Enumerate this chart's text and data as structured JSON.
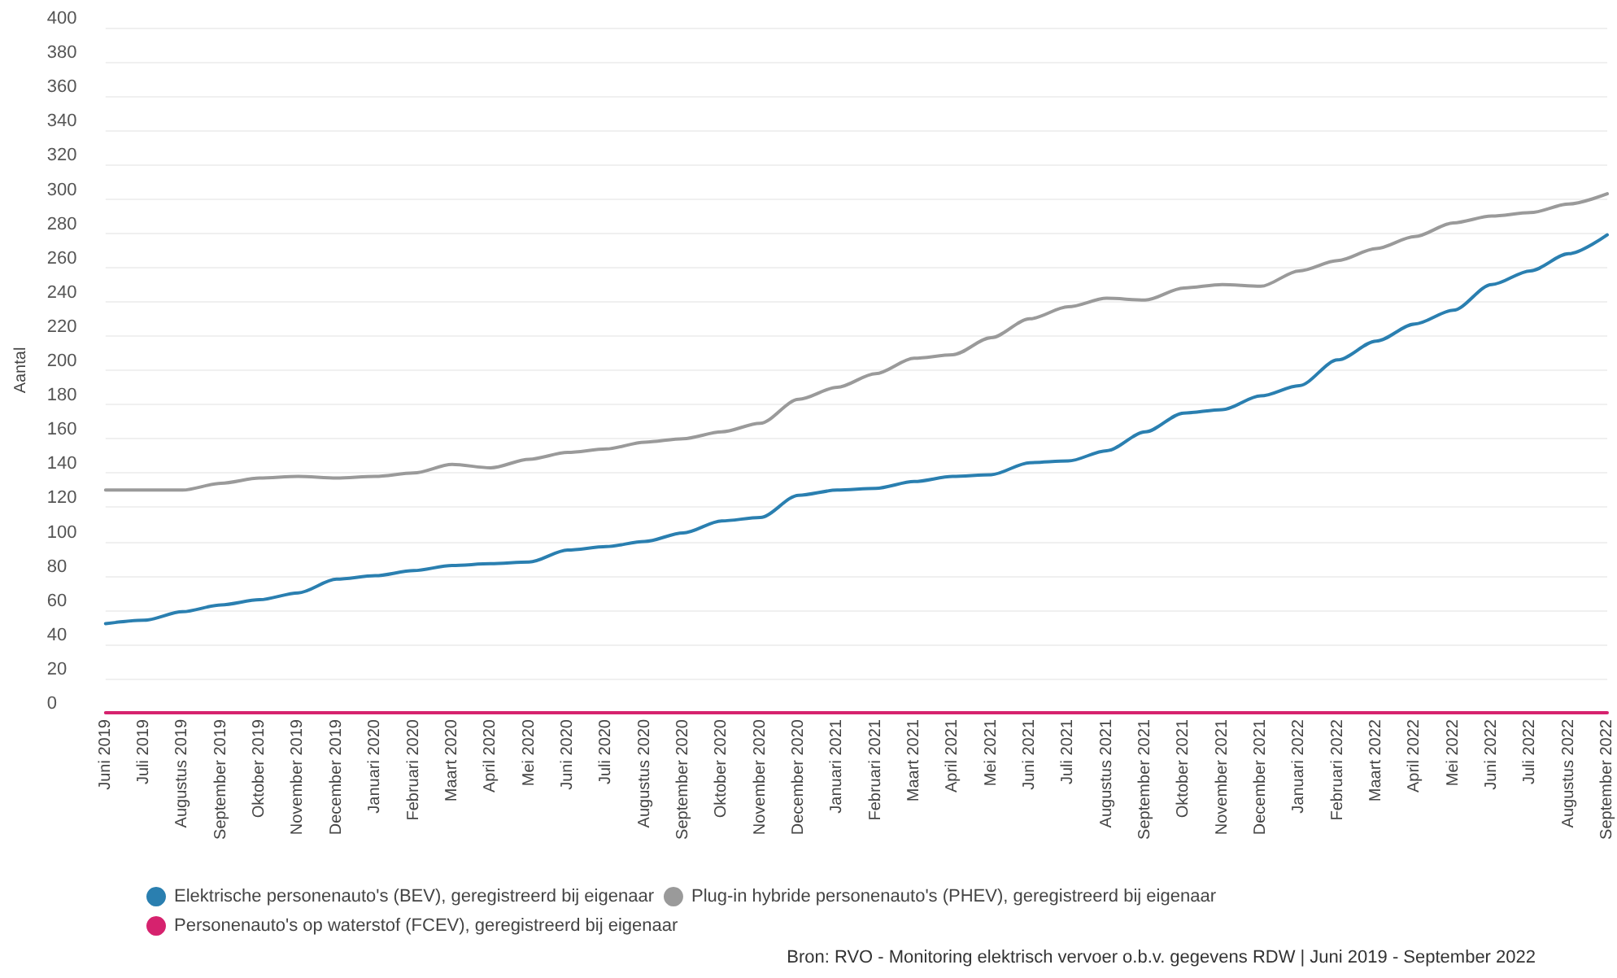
{
  "chart_data": {
    "type": "line",
    "categories": [
      "Juni 2019",
      "Juli 2019",
      "Augustus 2019",
      "September 2019",
      "Oktober 2019",
      "November 2019",
      "December 2019",
      "Januari 2020",
      "Februari 2020",
      "Maart 2020",
      "April 2020",
      "Mei 2020",
      "Juni 2020",
      "Juli 2020",
      "Augustus 2020",
      "September 2020",
      "Oktober 2020",
      "November 2020",
      "December 2020",
      "Januari 2021",
      "Februari 2021",
      "Maart 2021",
      "April 2021",
      "Mei 2021",
      "Juni 2021",
      "Juli 2021",
      "Augustus 2021",
      "September 2021",
      "Oktober 2021",
      "November 2021",
      "December 2021",
      "Januari 2022",
      "Februari 2022",
      "Maart 2022",
      "April 2022",
      "Mei 2022",
      "Juni 2022",
      "Juli 2022",
      "Augustus 2022",
      "September 2022"
    ],
    "series": [
      {
        "name": "Elektrische personenauto's (BEV), geregistreerd bij eigenaar",
        "color": "#2a7fb0",
        "values": [
          52,
          54,
          59,
          63,
          66,
          70,
          78,
          80,
          83,
          86,
          87,
          88,
          95,
          97,
          100,
          105,
          112,
          114,
          127,
          130,
          131,
          135,
          138,
          139,
          146,
          147,
          153,
          164,
          175,
          177,
          185,
          191,
          206,
          217,
          227,
          235,
          250,
          258,
          268,
          279
        ]
      },
      {
        "name": "Plug-in hybride personenauto's (PHEV), geregistreerd bij eigenaar",
        "color": "#9a9a9a",
        "values": [
          130,
          130,
          130,
          134,
          137,
          138,
          137,
          138,
          140,
          145,
          143,
          148,
          152,
          154,
          158,
          160,
          164,
          169,
          183,
          190,
          198,
          207,
          209,
          219,
          230,
          237,
          242,
          241,
          248,
          250,
          249,
          258,
          264,
          271,
          278,
          286,
          290,
          292,
          297,
          303
        ]
      },
      {
        "name": "Personenauto's op waterstof (FCEV), geregistreerd bij eigenaar",
        "color": "#d6226e",
        "values": [
          0,
          0,
          0,
          0,
          0,
          0,
          0,
          0,
          0,
          0,
          0,
          0,
          0,
          0,
          0,
          0,
          0,
          0,
          0,
          0,
          0,
          0,
          0,
          0,
          0,
          0,
          0,
          0,
          0,
          0,
          0,
          0,
          0,
          0,
          0,
          0,
          0,
          0,
          0,
          0
        ]
      }
    ],
    "ylabel": "Aantal",
    "ylim": [
      0,
      400
    ],
    "yticks": [
      0,
      20,
      40,
      60,
      80,
      100,
      120,
      140,
      160,
      180,
      200,
      220,
      240,
      260,
      280,
      300,
      320,
      340,
      360,
      380,
      400
    ],
    "grid": "y",
    "legend": "bottom",
    "marker": "none",
    "line_style": "solid",
    "annotations": [
      "Bron: RVO - Monitoring elektrisch vervoer o.b.v. gegevens RDW | Juni 2019 - September 2022"
    ]
  }
}
